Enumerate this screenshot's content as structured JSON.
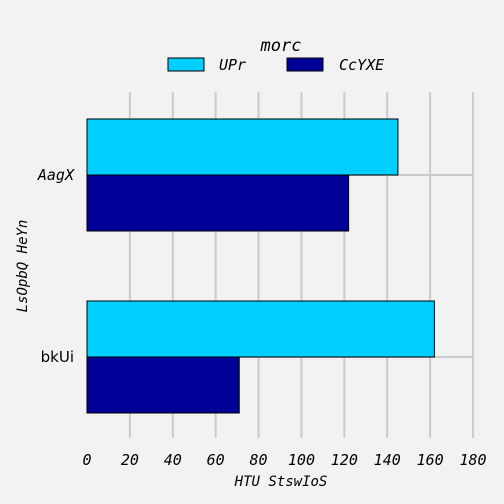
{
  "chart_data": {
    "type": "bar",
    "orientation": "horizontal",
    "title": "morc",
    "xlabel": "HTU StswIoS",
    "ylabel": "LsOpbQ HeYn",
    "categories": [
      "AagX",
      "bkUi"
    ],
    "series": [
      {
        "name": "UPr",
        "color": "#00cfff",
        "values": [
          145,
          162
        ]
      },
      {
        "name": "CcYXE",
        "color": "#000096",
        "values": [
          122,
          71
        ]
      }
    ],
    "xlim": [
      0,
      180
    ],
    "xticks": [
      "0",
      "20",
      "40",
      "60",
      "80",
      "100",
      "120",
      "140",
      "160",
      "180"
    ],
    "grid": true,
    "legend_position": "top"
  }
}
